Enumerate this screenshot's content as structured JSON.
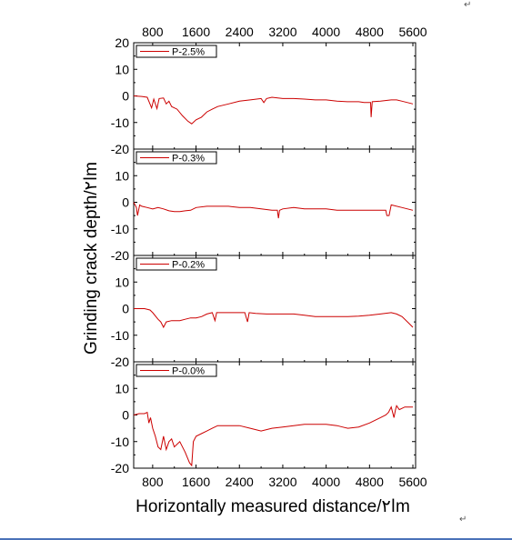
{
  "chart_data": {
    "type": "line",
    "ylabel": "Grinding crack depth/ا۲m",
    "xlabel": "Horizontally measured distance/ا۲m",
    "x_ticks": [
      1600,
      2400,
      3200,
      4000,
      4800,
      5600
    ],
    "x_ticks_top": [
      800,
      1600,
      2400,
      3200,
      4000,
      4800,
      5600
    ],
    "x_ticks_bottom": [
      800,
      1600,
      2400,
      3200,
      4000,
      4800,
      5600
    ],
    "x_tick_labels_bottom": [
      "800",
      "1600",
      "2400",
      "3200",
      "4000",
      "4800",
      "5600"
    ],
    "xlim": [
      450,
      5650
    ],
    "y_ticks": [
      -20,
      -10,
      0,
      10,
      20
    ],
    "ylim": [
      -20,
      20
    ],
    "legend_position": "top-left",
    "color": "#cc0000",
    "panels": [
      {
        "name": "P-2.5%",
        "y_tick_labels": [
          "20",
          "10",
          "0",
          "-10",
          "-20"
        ],
        "points": [
          [
            450,
            0
          ],
          [
            600,
            -0.2
          ],
          [
            700,
            -0.5
          ],
          [
            750,
            -3
          ],
          [
            780,
            -4.5
          ],
          [
            820,
            -1.2
          ],
          [
            880,
            -4.8
          ],
          [
            920,
            -1
          ],
          [
            1000,
            -0.8
          ],
          [
            1050,
            -3
          ],
          [
            1100,
            -2
          ],
          [
            1150,
            -4
          ],
          [
            1250,
            -5
          ],
          [
            1350,
            -7.5
          ],
          [
            1450,
            -9.5
          ],
          [
            1520,
            -10.5
          ],
          [
            1600,
            -9
          ],
          [
            1700,
            -8
          ],
          [
            1800,
            -6
          ],
          [
            1900,
            -5
          ],
          [
            2000,
            -4
          ],
          [
            2200,
            -3
          ],
          [
            2400,
            -2
          ],
          [
            2600,
            -1.5
          ],
          [
            2800,
            -1
          ],
          [
            2850,
            -2.5
          ],
          [
            2900,
            -1
          ],
          [
            3000,
            -0.5
          ],
          [
            3200,
            -1
          ],
          [
            3400,
            -1
          ],
          [
            3600,
            -1.2
          ],
          [
            3800,
            -1.5
          ],
          [
            4000,
            -1.5
          ],
          [
            4200,
            -2
          ],
          [
            4400,
            -2.2
          ],
          [
            4600,
            -2.2
          ],
          [
            4700,
            -2.5
          ],
          [
            4820,
            -2.5
          ],
          [
            4830,
            -8
          ],
          [
            4850,
            -2.2
          ],
          [
            5000,
            -2
          ],
          [
            5200,
            -1.5
          ],
          [
            5300,
            -1.5
          ],
          [
            5400,
            -2
          ],
          [
            5500,
            -2.5
          ],
          [
            5600,
            -3
          ]
        ]
      },
      {
        "name": "P-0.3%",
        "y_tick_labels": [
          "10",
          "0",
          "-10",
          "-20"
        ],
        "points": [
          [
            450,
            0
          ],
          [
            500,
            -2
          ],
          [
            520,
            -5
          ],
          [
            560,
            -1
          ],
          [
            600,
            -1.5
          ],
          [
            700,
            -2
          ],
          [
            800,
            -2.5
          ],
          [
            900,
            -2
          ],
          [
            1000,
            -2.5
          ],
          [
            1100,
            -3.2
          ],
          [
            1200,
            -3.5
          ],
          [
            1300,
            -3.5
          ],
          [
            1400,
            -3.2
          ],
          [
            1500,
            -3
          ],
          [
            1600,
            -2
          ],
          [
            1800,
            -1.5
          ],
          [
            2000,
            -1.5
          ],
          [
            2200,
            -1.5
          ],
          [
            2400,
            -2
          ],
          [
            2600,
            -2
          ],
          [
            2800,
            -2.5
          ],
          [
            3000,
            -3
          ],
          [
            3100,
            -3
          ],
          [
            3120,
            -6
          ],
          [
            3140,
            -3
          ],
          [
            3200,
            -2.5
          ],
          [
            3400,
            -2
          ],
          [
            3600,
            -2.5
          ],
          [
            3800,
            -2.5
          ],
          [
            4000,
            -2.5
          ],
          [
            4200,
            -3
          ],
          [
            4400,
            -3
          ],
          [
            4600,
            -3
          ],
          [
            4800,
            -3
          ],
          [
            5000,
            -3
          ],
          [
            5100,
            -3
          ],
          [
            5120,
            -5
          ],
          [
            5160,
            -5
          ],
          [
            5180,
            -3
          ],
          [
            5200,
            -1
          ],
          [
            5400,
            -2
          ],
          [
            5500,
            -2.5
          ],
          [
            5600,
            -3
          ]
        ]
      },
      {
        "name": "P-0.2%",
        "y_tick_labels": [
          "10",
          "0",
          "-10",
          "-20"
        ],
        "points": [
          [
            450,
            0
          ],
          [
            550,
            0
          ],
          [
            650,
            0
          ],
          [
            750,
            -0.5
          ],
          [
            800,
            -1.5
          ],
          [
            900,
            -4
          ],
          [
            950,
            -5
          ],
          [
            1000,
            -7
          ],
          [
            1050,
            -5
          ],
          [
            1150,
            -4.5
          ],
          [
            1300,
            -4.5
          ],
          [
            1400,
            -4
          ],
          [
            1500,
            -3.5
          ],
          [
            1600,
            -3.5
          ],
          [
            1700,
            -3
          ],
          [
            1800,
            -2
          ],
          [
            1900,
            -1.5
          ],
          [
            1950,
            -4.5
          ],
          [
            1980,
            -1.5
          ],
          [
            2100,
            -1.5
          ],
          [
            2300,
            -1.5
          ],
          [
            2400,
            -1.5
          ],
          [
            2500,
            -1.5
          ],
          [
            2550,
            -5
          ],
          [
            2580,
            -1.5
          ],
          [
            2700,
            -1.8
          ],
          [
            2900,
            -2
          ],
          [
            3200,
            -2
          ],
          [
            3400,
            -2
          ],
          [
            3600,
            -2.5
          ],
          [
            3800,
            -3
          ],
          [
            4000,
            -3
          ],
          [
            4200,
            -3
          ],
          [
            4400,
            -3
          ],
          [
            4600,
            -2.8
          ],
          [
            4800,
            -2.5
          ],
          [
            5000,
            -2
          ],
          [
            5200,
            -1.5
          ],
          [
            5300,
            -2
          ],
          [
            5400,
            -3
          ],
          [
            5500,
            -5
          ],
          [
            5600,
            -7
          ]
        ]
      },
      {
        "name": "P-0.0%",
        "y_tick_labels": [
          "10",
          "0",
          "-10",
          "-20"
        ],
        "points": [
          [
            450,
            0
          ],
          [
            550,
            0.5
          ],
          [
            650,
            0.5
          ],
          [
            700,
            1
          ],
          [
            730,
            -3
          ],
          [
            760,
            -1
          ],
          [
            800,
            -5
          ],
          [
            850,
            -8
          ],
          [
            900,
            -12
          ],
          [
            950,
            -13
          ],
          [
            1000,
            -8
          ],
          [
            1050,
            -13
          ],
          [
            1100,
            -10
          ],
          [
            1150,
            -9
          ],
          [
            1200,
            -12
          ],
          [
            1300,
            -10
          ],
          [
            1400,
            -14
          ],
          [
            1480,
            -18
          ],
          [
            1520,
            -19
          ],
          [
            1550,
            -10
          ],
          [
            1600,
            -8
          ],
          [
            1700,
            -7
          ],
          [
            1800,
            -6
          ],
          [
            1900,
            -5
          ],
          [
            2000,
            -4
          ],
          [
            2200,
            -4
          ],
          [
            2400,
            -4
          ],
          [
            2600,
            -5
          ],
          [
            2800,
            -6
          ],
          [
            3000,
            -5
          ],
          [
            3200,
            -4.5
          ],
          [
            3400,
            -4
          ],
          [
            3600,
            -3.5
          ],
          [
            3800,
            -3.5
          ],
          [
            4000,
            -3.5
          ],
          [
            4200,
            -4
          ],
          [
            4300,
            -4.5
          ],
          [
            4400,
            -5
          ],
          [
            4600,
            -4.5
          ],
          [
            4800,
            -3
          ],
          [
            5000,
            -1
          ],
          [
            5100,
            0
          ],
          [
            5150,
            1
          ],
          [
            5200,
            3
          ],
          [
            5250,
            -1
          ],
          [
            5280,
            2
          ],
          [
            5300,
            3.5
          ],
          [
            5350,
            2
          ],
          [
            5450,
            3
          ],
          [
            5600,
            3
          ]
        ]
      }
    ]
  }
}
